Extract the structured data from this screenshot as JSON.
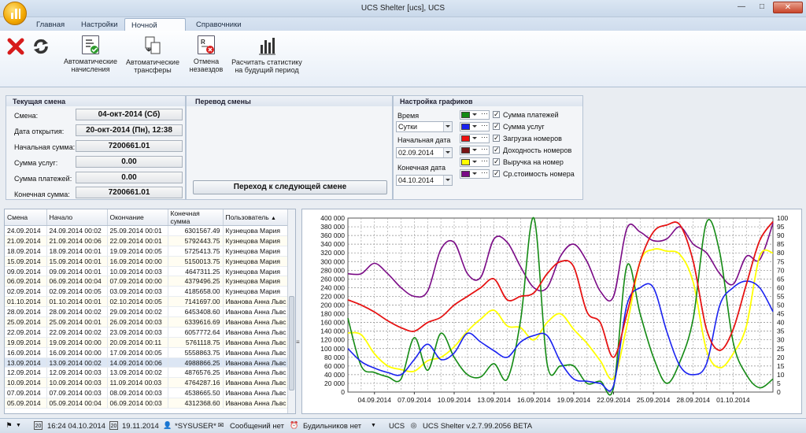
{
  "window": {
    "title": "UCS Shelter [ucs], UCS"
  },
  "tabs": [
    "Главная",
    "Настройки",
    "Ночной аудит",
    "Справочники"
  ],
  "ribbon": {
    "auto_charges": [
      "Автоматические",
      "начисления"
    ],
    "auto_transfers": [
      "Автоматические",
      "трансферы"
    ],
    "cancel_noshows": [
      "Отмена",
      "незаездов"
    ],
    "calc_stats": [
      "Расчитать статистику",
      "на будущий период"
    ]
  },
  "shift": {
    "header": "Текущая смена",
    "shift_label": "Смена:",
    "shift_value": "04-окт-2014 (Сб)",
    "open_label": "Дата открытия:",
    "open_value": "20-окт-2014 (Пн), 12:38",
    "start_label": "Начальная сумма:",
    "start_value": "7200661.01",
    "services_label": "Сумма услуг:",
    "services_value": "0.00",
    "payments_label": "Сумма платежей:",
    "payments_value": "0.00",
    "end_label": "Конечная сумма:",
    "end_value": "7200661.01"
  },
  "transfer": {
    "header": "Перевод смены",
    "button": "Переход к следующей смене"
  },
  "chart_settings": {
    "header": "Настройка графиков",
    "time_label": "Время",
    "time_value": "Сутки",
    "start_label": "Начальная дата",
    "start_value": "02.09.2014",
    "end_label": "Конечная дата",
    "end_value": "04.10.2014",
    "series": [
      {
        "name": "Сумма платежей",
        "color": "#138a13"
      },
      {
        "name": "Сумма услуг",
        "color": "#1a22f0"
      },
      {
        "name": "Загрузка номеров",
        "color": "#ee1111"
      },
      {
        "name": "Доходность номеров",
        "color": "#7a1414"
      },
      {
        "name": "Выручка на номер",
        "color": "#ffff00"
      },
      {
        "name": "Ср.стоимость номера",
        "color": "#7a0a86"
      }
    ]
  },
  "table": {
    "columns": [
      "Смена",
      "Начало",
      "Окончание",
      "Конечная сумма",
      "Пользователь"
    ],
    "rows": [
      [
        "24.09.2014",
        "24.09.2014 00:02",
        "25.09.2014 00:01",
        "6301567.49",
        "Кузнецова Мария"
      ],
      [
        "21.09.2014",
        "21.09.2014 00:06",
        "22.09.2014 00:01",
        "5792443.75",
        "Кузнецова Мария"
      ],
      [
        "18.09.2014",
        "18.09.2014 00:01",
        "19.09.2014 00:05",
        "5725413.75",
        "Кузнецова Мария"
      ],
      [
        "15.09.2014",
        "15.09.2014 00:01",
        "16.09.2014 00:00",
        "5150013.75",
        "Кузнецова Мария"
      ],
      [
        "09.09.2014",
        "09.09.2014 00:01",
        "10.09.2014 00:03",
        "4647311.25",
        "Кузнецова Мария"
      ],
      [
        "06.09.2014",
        "06.09.2014 00:04",
        "07.09.2014 00:00",
        "4379496.25",
        "Кузнецова Мария"
      ],
      [
        "02.09.2014",
        "02.09.2014 00:05",
        "03.09.2014 00:03",
        "4185658.00",
        "Кузнецова Мария"
      ],
      [
        "01.10.2014",
        "01.10.2014 00:01",
        "02.10.2014 00:05",
        "7141697.00",
        "Иванова Анна Львс"
      ],
      [
        "28.09.2014",
        "28.09.2014 00:02",
        "29.09.2014 00:02",
        "6453408.60",
        "Иванова Анна Львс"
      ],
      [
        "25.09.2014",
        "25.09.2014 00:01",
        "26.09.2014 00:03",
        "6339616.69",
        "Иванова Анна Львс"
      ],
      [
        "22.09.2014",
        "22.09.2014 00:02",
        "23.09.2014 00:03",
        "6057772.64",
        "Иванова Анна Львс"
      ],
      [
        "19.09.2014",
        "19.09.2014 00:00",
        "20.09.2014 00:11",
        "5761118.75",
        "Иванова Анна Львс"
      ],
      [
        "16.09.2014",
        "16.09.2014 00:00",
        "17.09.2014 00:05",
        "5558863.75",
        "Иванова Анна Львс"
      ],
      [
        "13.09.2014",
        "13.09.2014 00:02",
        "14.09.2014 00:06",
        "4988866.25",
        "Иванова Анна Львс"
      ],
      [
        "12.09.2014",
        "12.09.2014 00:03",
        "13.09.2014 00:02",
        "4876576.25",
        "Иванова Анна Львс"
      ],
      [
        "10.09.2014",
        "10.09.2014 00:03",
        "11.09.2014 00:03",
        "4764287.16",
        "Иванова Анна Львс"
      ],
      [
        "07.09.2014",
        "07.09.2014 00:03",
        "08.09.2014 00:03",
        "4538665.50",
        "Иванова Анна Львс"
      ],
      [
        "05.09.2014",
        "05.09.2014 00:04",
        "06.09.2014 00:03",
        "4312368.60",
        "Иванова Анна Львс"
      ]
    ]
  },
  "chart_data": {
    "type": "line",
    "x": [
      "02.09.2014",
      "03.09.2014",
      "04.09.2014",
      "05.09.2014",
      "06.09.2014",
      "07.09.2014",
      "08.09.2014",
      "09.09.2014",
      "10.09.2014",
      "11.09.2014",
      "12.09.2014",
      "13.09.2014",
      "14.09.2014",
      "15.09.2014",
      "16.09.2014",
      "17.09.2014",
      "18.09.2014",
      "19.09.2014",
      "20.09.2014",
      "21.09.2014",
      "22.09.2014",
      "23.09.2014",
      "24.09.2014",
      "25.09.2014",
      "26.09.2014",
      "27.09.2014",
      "28.09.2014",
      "29.09.2014",
      "30.09.2014",
      "01.10.2014",
      "02.10.2014",
      "03.10.2014",
      "04.10.2014"
    ],
    "xticks": [
      "04.09.2014",
      "07.09.2014",
      "10.09.2014",
      "13.09.2014",
      "16.09.2014",
      "19.09.2014",
      "22.09.2014",
      "25.09.2014",
      "28.09.2014",
      "01.10.2014"
    ],
    "ylim_left": [
      0,
      400000
    ],
    "ylim_right": [
      0,
      100
    ],
    "left_ticks": [
      "0",
      "20 000",
      "40 000",
      "60 000",
      "80 000",
      "100 000",
      "120 000",
      "140 000",
      "160 000",
      "180 000",
      "200 000",
      "220 000",
      "240 000",
      "260 000",
      "280 000",
      "300 000",
      "320 000",
      "340 000",
      "360 000",
      "380 000",
      "400 000"
    ],
    "right_ticks": [
      "0",
      "5",
      "10",
      "15",
      "20",
      "25",
      "30",
      "35",
      "40",
      "45",
      "50",
      "55",
      "60",
      "65",
      "70",
      "75",
      "80",
      "85",
      "90",
      "95",
      "100"
    ],
    "grid": true,
    "series": [
      {
        "name": "Сумма платежей",
        "axis": "left",
        "values": [
          170000,
          60000,
          45000,
          35000,
          30000,
          125000,
          50000,
          135000,
          80000,
          40000,
          35000,
          65000,
          30000,
          165000,
          400000,
          65000,
          60000,
          60000,
          20000,
          25000,
          10000,
          290000,
          180000,
          80000,
          20000,
          70000,
          170000,
          390000,
          320000,
          115000,
          40000,
          10000,
          30000
        ]
      },
      {
        "name": "Сумма услуг",
        "axis": "left",
        "values": [
          100000,
          70000,
          55000,
          45000,
          40000,
          75000,
          110000,
          75000,
          90000,
          135000,
          115000,
          95000,
          80000,
          115000,
          130000,
          130000,
          70000,
          30000,
          25000,
          20000,
          15000,
          200000,
          240000,
          240000,
          140000,
          60000,
          40000,
          65000,
          200000,
          240000,
          255000,
          240000,
          185000
        ]
      },
      {
        "name": "Загрузка номеров",
        "axis": "right",
        "values": [
          53,
          50,
          46,
          41,
          37,
          35,
          40,
          43,
          50,
          55,
          60,
          65,
          53,
          55,
          57,
          68,
          75,
          72,
          46,
          40,
          20,
          45,
          75,
          92,
          96,
          96,
          75,
          36,
          24,
          36,
          62,
          87,
          98
        ]
      },
      {
        "name": "Доходность номеров",
        "axis": "right",
        "values": [
          53,
          50,
          46,
          41,
          37,
          35,
          40,
          43,
          50,
          55,
          60,
          65,
          53,
          55,
          57,
          68,
          75,
          72,
          46,
          40,
          20,
          45,
          75,
          92,
          96,
          96,
          75,
          36,
          24,
          36,
          62,
          87,
          98
        ]
      },
      {
        "name": "Выручка на номер",
        "axis": "right",
        "values": [
          34,
          33,
          22,
          15,
          13,
          12,
          18,
          20,
          26,
          35,
          42,
          47,
          38,
          37,
          30,
          40,
          45,
          36,
          28,
          18,
          8,
          38,
          75,
          82,
          81,
          79,
          63,
          24,
          14,
          22,
          38,
          78,
          80
        ]
      },
      {
        "name": "Ср.стоимость номера",
        "axis": "right",
        "values": [
          68,
          68,
          74,
          68,
          60,
          55,
          58,
          82,
          86,
          68,
          66,
          88,
          86,
          72,
          60,
          60,
          78,
          85,
          75,
          58,
          55,
          94,
          92,
          87,
          88,
          95,
          85,
          80,
          68,
          62,
          78,
          76,
          97
        ]
      }
    ]
  },
  "status": {
    "time": "16:24 04.10.2014",
    "date": "19.11.2014",
    "user": "*SYSUSER*",
    "messages": "Сообщений нет",
    "alarms": "Будильников нет",
    "ucs": "UCS",
    "version": "UCS Shelter v.2.7.99.2056 BETA"
  }
}
